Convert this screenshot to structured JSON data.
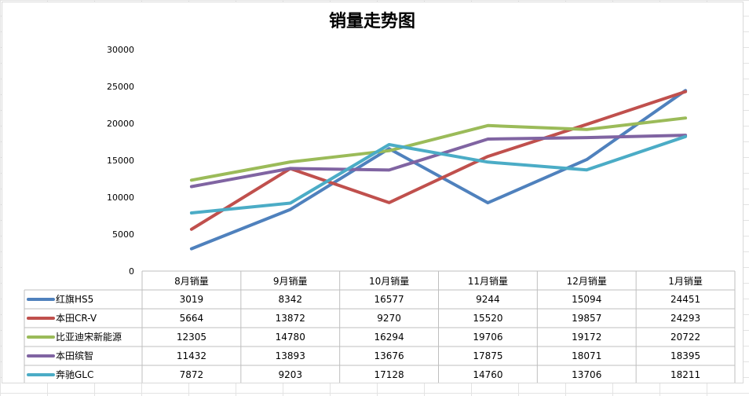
{
  "chart_data": {
    "type": "line",
    "title": "销量走势图",
    "categories": [
      "8月销量",
      "9月销量",
      "10月销量",
      "11月销量",
      "12月销量",
      "1月销量"
    ],
    "y_ticks": [
      "0",
      "5000",
      "10000",
      "15000",
      "20000",
      "25000",
      "30000"
    ],
    "ylim": [
      0,
      30000
    ],
    "grid": false,
    "legend": "data-table-left",
    "series": [
      {
        "name": "红旗HS5",
        "color": "#4f81bd",
        "values": [
          3019,
          8342,
          16577,
          9244,
          15094,
          24451
        ]
      },
      {
        "name": "本田CR-V",
        "color": "#c0504d",
        "values": [
          5664,
          13872,
          9270,
          15520,
          19857,
          24293
        ]
      },
      {
        "name": "比亚迪宋新能源",
        "color": "#9bbb59",
        "values": [
          12305,
          14780,
          16294,
          19706,
          19172,
          20722
        ]
      },
      {
        "name": "本田缤智",
        "color": "#8064a2",
        "values": [
          11432,
          13893,
          13676,
          17875,
          18071,
          18395
        ]
      },
      {
        "name": "奔驰GLC",
        "color": "#4bacc6",
        "values": [
          7872,
          9203,
          17128,
          14760,
          13706,
          18211
        ]
      }
    ]
  }
}
